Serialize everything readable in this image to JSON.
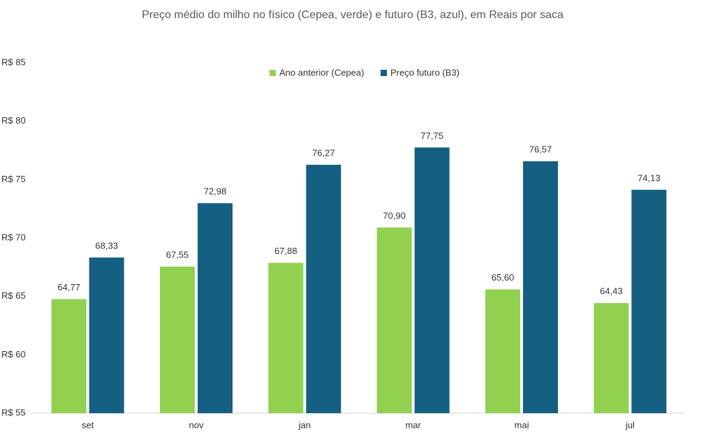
{
  "chart_data": {
    "type": "bar",
    "title": "Preço médio do milho no físico (Cepea, verde) e futuro (B3, azul), em Reais por saca",
    "categories": [
      "set",
      "nov",
      "jan",
      "mar",
      "mai",
      "jul"
    ],
    "series": [
      {
        "name": "Ano anterior (Cepea)",
        "color": "#92d050",
        "values": [
          64.77,
          67.55,
          67.88,
          70.9,
          65.6,
          64.43
        ],
        "value_labels": [
          "64,77",
          "67,55",
          "67,88",
          "70,90",
          "65,60",
          "64,43"
        ]
      },
      {
        "name": "Preço futuro (B3)",
        "color": "#156082",
        "values": [
          68.33,
          72.98,
          76.27,
          77.75,
          76.57,
          74.13
        ],
        "value_labels": [
          "68,33",
          "72,98",
          "76,27",
          "77,75",
          "76,57",
          "74,13"
        ]
      }
    ],
    "ylim": [
      55,
      85
    ],
    "yticks": [
      {
        "value": 55,
        "label": "R$ 55"
      },
      {
        "value": 60,
        "label": "R$ 60"
      },
      {
        "value": 65,
        "label": "R$ 65"
      },
      {
        "value": 70,
        "label": "R$ 70"
      },
      {
        "value": 75,
        "label": "R$ 75"
      },
      {
        "value": 80,
        "label": "R$ 80"
      },
      {
        "value": 85,
        "label": "R$ 85"
      }
    ],
    "grid": false,
    "legend": "top"
  }
}
